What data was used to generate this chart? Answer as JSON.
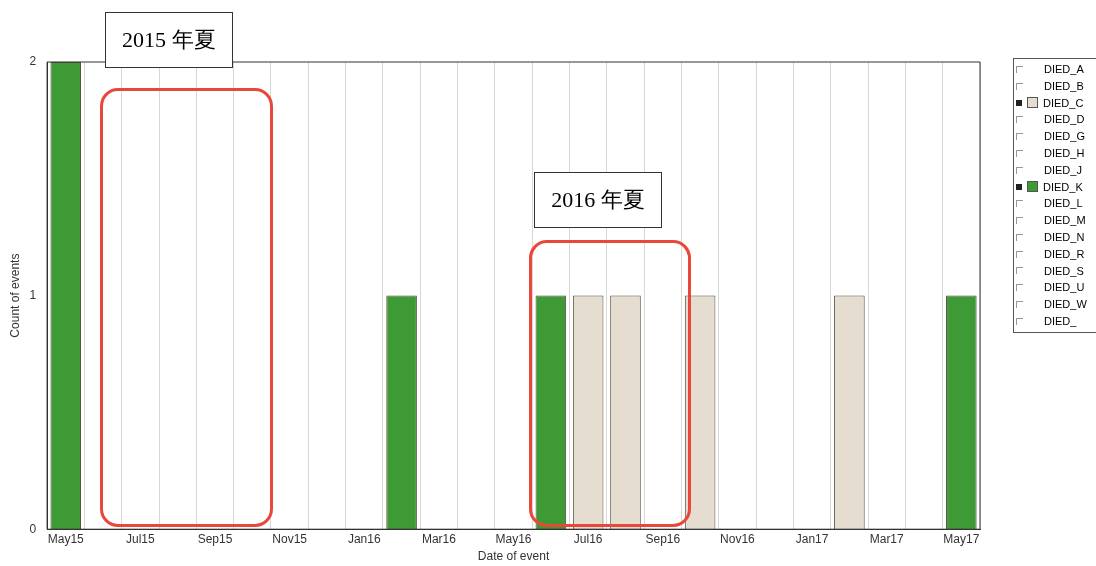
{
  "chart_data": {
    "type": "bar",
    "xlabel": "Date of event",
    "ylabel": "Count of events",
    "categories": [
      "May15",
      null,
      "Jul15",
      null,
      "Sep15",
      null,
      "Nov15",
      null,
      "Jan16",
      null,
      "Mar16",
      null,
      "May16",
      null,
      "Jul16",
      null,
      "Sep16",
      null,
      "Nov16",
      null,
      "Jan17",
      null,
      "Mar17",
      null,
      "May17"
    ],
    "series": [
      {
        "name": "DIED_A",
        "values": [
          null,
          null,
          null,
          null,
          null,
          null,
          null,
          null,
          null,
          null,
          null,
          null,
          null,
          null,
          null,
          null,
          null,
          null,
          null,
          null,
          null,
          null,
          null,
          null,
          null
        ]
      },
      {
        "name": "DIED_B",
        "values": [
          null,
          null,
          null,
          null,
          null,
          null,
          null,
          null,
          null,
          null,
          null,
          null,
          null,
          null,
          null,
          null,
          null,
          null,
          null,
          null,
          null,
          null,
          null,
          null,
          null
        ]
      },
      {
        "name": "DIED_C",
        "color": "#e4ddd0",
        "values": [
          null,
          null,
          null,
          null,
          null,
          null,
          null,
          null,
          null,
          null,
          null,
          null,
          null,
          null,
          1,
          1,
          null,
          1,
          null,
          null,
          null,
          1,
          null,
          null,
          null
        ]
      },
      {
        "name": "DIED_D",
        "values": [
          null,
          null,
          null,
          null,
          null,
          null,
          null,
          null,
          null,
          null,
          null,
          null,
          null,
          null,
          null,
          null,
          null,
          null,
          null,
          null,
          null,
          null,
          null,
          null,
          null
        ]
      },
      {
        "name": "DIED_G",
        "values": [
          null,
          null,
          null,
          null,
          null,
          null,
          null,
          null,
          null,
          null,
          null,
          null,
          null,
          null,
          null,
          null,
          null,
          null,
          null,
          null,
          null,
          null,
          null,
          null,
          null
        ]
      },
      {
        "name": "DIED_H",
        "values": [
          null,
          null,
          null,
          null,
          null,
          null,
          null,
          null,
          null,
          null,
          null,
          null,
          null,
          null,
          null,
          null,
          null,
          null,
          null,
          null,
          null,
          null,
          null,
          null,
          null
        ]
      },
      {
        "name": "DIED_J",
        "values": [
          null,
          null,
          null,
          null,
          null,
          null,
          null,
          null,
          null,
          null,
          null,
          null,
          null,
          null,
          null,
          null,
          null,
          null,
          null,
          null,
          null,
          null,
          null,
          null,
          null
        ]
      },
      {
        "name": "DIED_K",
        "color": "#3e9a35",
        "values": [
          2,
          null,
          null,
          null,
          null,
          null,
          null,
          null,
          null,
          1,
          null,
          null,
          null,
          1,
          null,
          null,
          null,
          null,
          null,
          null,
          null,
          null,
          null,
          null,
          1
        ]
      },
      {
        "name": "DIED_L",
        "values": [
          null,
          null,
          null,
          null,
          null,
          null,
          null,
          null,
          null,
          null,
          null,
          null,
          null,
          null,
          null,
          null,
          null,
          null,
          null,
          null,
          null,
          null,
          null,
          null,
          null
        ]
      },
      {
        "name": "DIED_M",
        "values": [
          null,
          null,
          null,
          null,
          null,
          null,
          null,
          null,
          null,
          null,
          null,
          null,
          null,
          null,
          null,
          null,
          null,
          null,
          null,
          null,
          null,
          null,
          null,
          null,
          null
        ]
      },
      {
        "name": "DIED_N",
        "values": [
          null,
          null,
          null,
          null,
          null,
          null,
          null,
          null,
          null,
          null,
          null,
          null,
          null,
          null,
          null,
          null,
          null,
          null,
          null,
          null,
          null,
          null,
          null,
          null,
          null
        ]
      },
      {
        "name": "DIED_R",
        "values": [
          null,
          null,
          null,
          null,
          null,
          null,
          null,
          null,
          null,
          null,
          null,
          null,
          null,
          null,
          null,
          null,
          null,
          null,
          null,
          null,
          null,
          null,
          null,
          null,
          null
        ]
      },
      {
        "name": "DIED_S",
        "values": [
          null,
          null,
          null,
          null,
          null,
          null,
          null,
          null,
          null,
          null,
          null,
          null,
          null,
          null,
          null,
          null,
          null,
          null,
          null,
          null,
          null,
          null,
          null,
          null,
          null
        ]
      },
      {
        "name": "DIED_U",
        "values": [
          null,
          null,
          null,
          null,
          null,
          null,
          null,
          null,
          null,
          null,
          null,
          null,
          null,
          null,
          null,
          null,
          null,
          null,
          null,
          null,
          null,
          null,
          null,
          null,
          null
        ]
      },
      {
        "name": "DIED_W",
        "values": [
          null,
          null,
          null,
          null,
          null,
          null,
          null,
          null,
          null,
          null,
          null,
          null,
          null,
          null,
          null,
          null,
          null,
          null,
          null,
          null,
          null,
          null,
          null,
          null,
          null
        ]
      },
      {
        "name": "DIED_",
        "values": [
          null,
          null,
          null,
          null,
          null,
          null,
          null,
          null,
          null,
          null,
          null,
          null,
          null,
          null,
          null,
          null,
          null,
          null,
          null,
          null,
          null,
          null,
          null,
          null,
          null
        ]
      }
    ],
    "stacked": true,
    "ylim": [
      0,
      2
    ],
    "yticks": [
      0,
      1,
      2
    ],
    "grid": "x",
    "legend": "right",
    "annotations": [
      "2015 年夏",
      "2016 年夏"
    ]
  }
}
